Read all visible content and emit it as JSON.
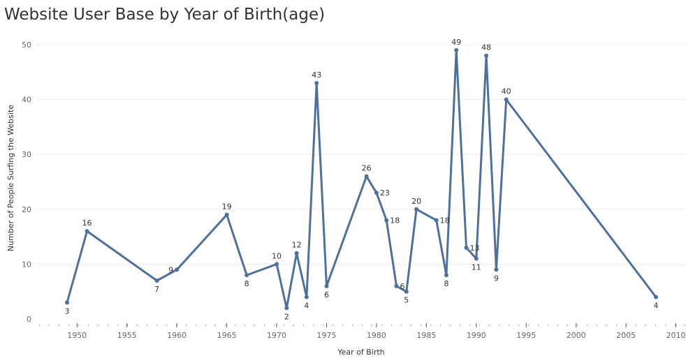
{
  "chart_data": {
    "type": "line",
    "title": "Website User Base by Year of Birth(age)",
    "xlabel": "Year of Birth",
    "ylabel": "Number of People Surfing the Website",
    "xlim": [
      1945,
      2011
    ],
    "ylim": [
      0,
      52
    ],
    "xticks": [
      1950,
      1955,
      1960,
      1965,
      1970,
      1975,
      1980,
      1985,
      1990,
      1995,
      2000,
      2005,
      2010
    ],
    "yticks": [
      0,
      10,
      20,
      30,
      40,
      50
    ],
    "grid": true,
    "color": "#4e709c",
    "series": [
      {
        "x": [
          1949,
          1951,
          1958,
          1960,
          1965,
          1967,
          1970,
          1971,
          1972,
          1973,
          1974,
          1975,
          1979,
          1980,
          1981,
          1982,
          1983,
          1984,
          1986,
          1987,
          1988,
          1989,
          1990,
          1991,
          1992,
          1993,
          2008
        ],
        "y": [
          3,
          16,
          7,
          9,
          19,
          8,
          10,
          2,
          12,
          4,
          43,
          6,
          26,
          23,
          18,
          6,
          5,
          20,
          18,
          8,
          49,
          13,
          11,
          48,
          9,
          40,
          4
        ],
        "labels": [
          "3",
          "16",
          "7",
          "9",
          "19",
          "8",
          "10",
          "2",
          "12",
          "4",
          "43",
          "6",
          "26",
          "23",
          "18",
          "6",
          "5",
          "20",
          "18",
          "8",
          "49",
          "13",
          "11",
          "48",
          "9",
          "40",
          "4"
        ]
      }
    ]
  }
}
